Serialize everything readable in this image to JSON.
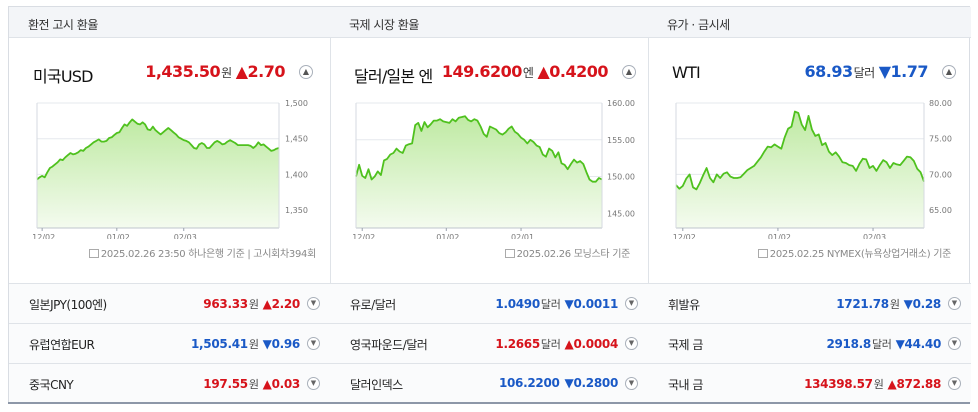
{
  "colors": {
    "up": "#d6131b",
    "down": "#1a59c6",
    "line": "#4fc11e",
    "fill_top": "#bfeaa3",
    "fill_bottom": "#f4fbef"
  },
  "icons": {
    "expand": "chevron-up-icon",
    "row_toggle": "chevron-down-icon",
    "source": "document-icon"
  },
  "panels": [
    {
      "header": "환전 고시 환율",
      "title": "미국USD",
      "price": "1,435.50",
      "unit": "원",
      "change_sign": "▲",
      "change": "2.70",
      "direction": "up",
      "source": "2025.02.26 23:50 하나은행 기준 | 고시회차394회",
      "rows": [
        {
          "label": "일본JPY(100엔)",
          "value": "963.33",
          "unit": "원",
          "sign": "▲",
          "change": "2.20",
          "direction": "up"
        },
        {
          "label": "유럽연합EUR",
          "value": "1,505.41",
          "unit": "원",
          "sign": "▼",
          "change": "0.96",
          "direction": "down"
        },
        {
          "label": "중국CNY",
          "value": "197.55",
          "unit": "원",
          "sign": "▲",
          "change": "0.03",
          "direction": "up"
        }
      ]
    },
    {
      "header": "국제 시장 환율",
      "title": "달러/일본 엔",
      "price": "149.6200",
      "unit": "엔",
      "change_sign": "▲",
      "change": "0.4200",
      "direction": "up",
      "source": "2025.02.26 모닝스타 기준",
      "rows": [
        {
          "label": "유로/달러",
          "value": "1.0490",
          "unit": "달러",
          "sign": "▼",
          "change": "0.0011",
          "direction": "down"
        },
        {
          "label": "영국파운드/달러",
          "value": "1.2665",
          "unit": "달러",
          "sign": "▲",
          "change": "0.0004",
          "direction": "up"
        },
        {
          "label": "달러인덱스",
          "value": "106.2200",
          "unit": "",
          "sign": "▼",
          "change": "0.2800",
          "direction": "down"
        }
      ]
    },
    {
      "header": "유가 · 금시세",
      "title": "WTI",
      "price": "68.93",
      "unit": "달러",
      "change_sign": "▼",
      "change": "1.77",
      "direction": "down",
      "source": "2025.02.25 NYMEX(뉴욕상업거래소) 기준",
      "rows": [
        {
          "label": "휘발유",
          "value": "1721.78",
          "unit": "원",
          "sign": "▼",
          "change": "0.28",
          "direction": "down"
        },
        {
          "label": "국제 금",
          "value": "2918.8",
          "unit": "달러",
          "sign": "▼",
          "change": "44.40",
          "direction": "down"
        },
        {
          "label": "국내 금",
          "value": "134398.57",
          "unit": "원",
          "sign": "▲",
          "change": "872.88",
          "direction": "up"
        }
      ]
    }
  ],
  "chart_data": [
    {
      "type": "area",
      "series_of": "미국USD",
      "xlabels": [
        "12/02",
        "01/02",
        "02/03"
      ],
      "ylim": [
        1325,
        1500
      ],
      "yticks": [
        "1,500",
        "1,450",
        "1,400",
        "1,350"
      ],
      "ytick_values": [
        1500,
        1450,
        1400,
        1350
      ],
      "grid": true,
      "values": [
        1393,
        1396,
        1398,
        1396,
        1403,
        1409,
        1411,
        1414,
        1417,
        1421,
        1420,
        1424,
        1427,
        1430,
        1428,
        1429,
        1431,
        1434,
        1433,
        1437,
        1439,
        1442,
        1445,
        1447,
        1449,
        1446,
        1446,
        1447,
        1451,
        1452,
        1455,
        1458,
        1459,
        1465,
        1470,
        1468,
        1473,
        1477,
        1474,
        1471,
        1470,
        1473,
        1470,
        1463,
        1462,
        1467,
        1462,
        1459,
        1456,
        1459,
        1462,
        1465,
        1462,
        1459,
        1456,
        1452,
        1450,
        1448,
        1447,
        1445,
        1441,
        1437,
        1436,
        1442,
        1444,
        1442,
        1437,
        1437,
        1441,
        1445,
        1447,
        1445,
        1442,
        1443,
        1446,
        1448,
        1446,
        1444,
        1441,
        1441,
        1441,
        1441,
        1441,
        1440,
        1437,
        1440,
        1445,
        1441,
        1442,
        1439,
        1436,
        1433,
        1434,
        1436,
        1437
      ],
      "x_tick_index": [
        2,
        31,
        57
      ]
    },
    {
      "type": "area",
      "series_of": "달러/일본 엔",
      "xlabels": [
        "12/02",
        "01/02",
        "02/01"
      ],
      "ylim": [
        143,
        160
      ],
      "yticks": [
        "160.00",
        "155.00",
        "150.00",
        "145.00"
      ],
      "ytick_values": [
        160,
        155,
        150,
        145
      ],
      "grid": true,
      "values": [
        150.0,
        151.6,
        150.1,
        149.8,
        151.0,
        149.6,
        150.0,
        150.7,
        150.2,
        152.2,
        152.4,
        153.0,
        153.2,
        153.8,
        153.4,
        153.2,
        154.2,
        154.4,
        154.5,
        157.0,
        157.3,
        156.2,
        157.4,
        156.7,
        157.1,
        157.6,
        157.6,
        157.8,
        157.5,
        157.4,
        157.3,
        157.8,
        157.5,
        158.0,
        158.1,
        158.2,
        157.7,
        157.5,
        157.8,
        157.6,
        156.8,
        155.8,
        155.4,
        156.8,
        156.6,
        156.4,
        155.9,
        155.7,
        156.0,
        156.5,
        156.8,
        156.1,
        155.8,
        155.3,
        155.0,
        154.5,
        155.0,
        154.7,
        154.2,
        154.0,
        153.0,
        152.7,
        153.8,
        153.5,
        152.6,
        153.3,
        151.8,
        151.6,
        151.0,
        151.7,
        152.3,
        151.9,
        152.1,
        151.7,
        150.6,
        149.6,
        149.3,
        149.3,
        149.8,
        149.6
      ],
      "x_tick_index": [
        2,
        29,
        53
      ]
    },
    {
      "type": "area",
      "series_of": "WTI",
      "xlabels": [
        "12/02",
        "01/02",
        "02/03"
      ],
      "ylim": [
        62.5,
        80
      ],
      "yticks": [
        "80.00",
        "75.00",
        "70.00",
        "65.00"
      ],
      "ytick_values": [
        80,
        75,
        70,
        65
      ],
      "grid": true,
      "values": [
        68.5,
        68.0,
        68.4,
        69.4,
        70.0,
        68.2,
        67.9,
        68.8,
        69.9,
        70.9,
        69.5,
        68.9,
        70.0,
        69.5,
        70.1,
        70.3,
        69.7,
        69.5,
        69.5,
        69.6,
        70.1,
        70.6,
        70.9,
        71.2,
        71.8,
        72.4,
        73.2,
        73.9,
        73.8,
        74.2,
        73.9,
        73.6,
        75.2,
        76.4,
        76.7,
        78.8,
        78.6,
        77.0,
        76.2,
        78.2,
        76.3,
        75.4,
        75.6,
        74.1,
        74.4,
        73.2,
        72.7,
        73.1,
        72.5,
        71.7,
        71.6,
        71.3,
        71.2,
        70.5,
        71.5,
        72.2,
        72.1,
        70.9,
        71.2,
        70.5,
        71.3,
        72.0,
        71.7,
        70.9,
        71.6,
        71.4,
        71.3,
        71.9,
        72.5,
        72.4,
        71.9,
        70.8,
        70.3,
        69.0
      ],
      "x_tick_index": [
        2,
        30,
        58
      ]
    }
  ]
}
